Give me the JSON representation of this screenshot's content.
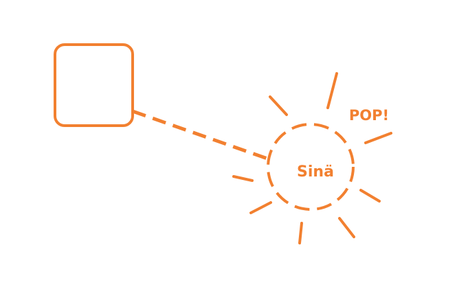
{
  "diagram": {
    "stroke_color": "#F28030",
    "text_color": "#F28030",
    "background": "#ffffff",
    "nodes": {
      "square": {
        "shape": "rounded-square"
      },
      "circle": {
        "shape": "dashed-circle",
        "label": "Sinä"
      }
    },
    "connector": {
      "style": "dashed",
      "from": "square",
      "to": "circle"
    },
    "burst": {
      "label": "POP!"
    }
  }
}
